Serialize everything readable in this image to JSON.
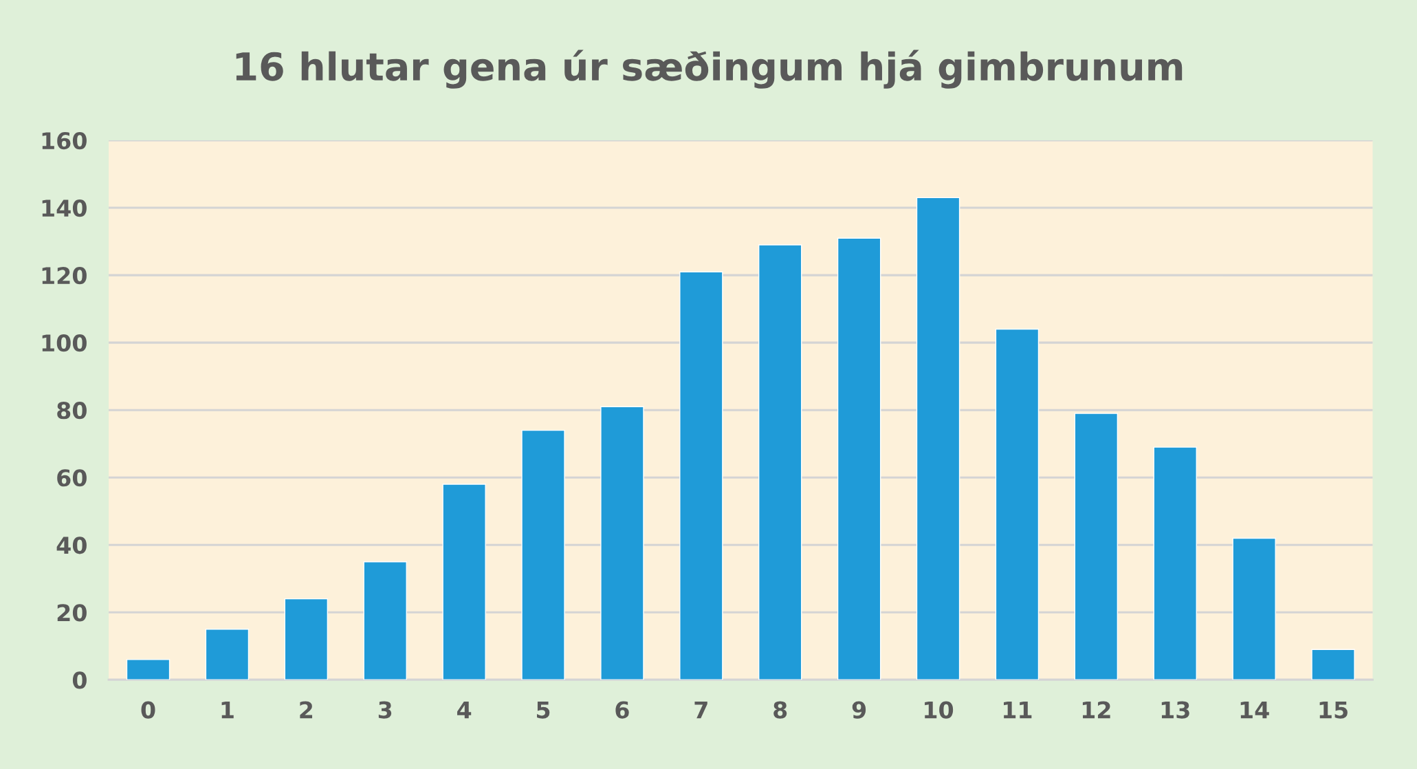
{
  "chart_data": {
    "type": "bar",
    "title": "16 hlutar gena úr sæðingum hjá gimbrunum",
    "categories": [
      "0",
      "1",
      "2",
      "3",
      "4",
      "5",
      "6",
      "7",
      "8",
      "9",
      "10",
      "11",
      "12",
      "13",
      "14",
      "15"
    ],
    "values": [
      6,
      15,
      24,
      35,
      58,
      74,
      81,
      121,
      129,
      131,
      143,
      104,
      79,
      69,
      42,
      9
    ],
    "color": "#1f9bd8",
    "ylim": [
      0,
      160
    ],
    "yticks": [
      0,
      20,
      40,
      60,
      80,
      100,
      120,
      140,
      160
    ],
    "grid": "y"
  }
}
